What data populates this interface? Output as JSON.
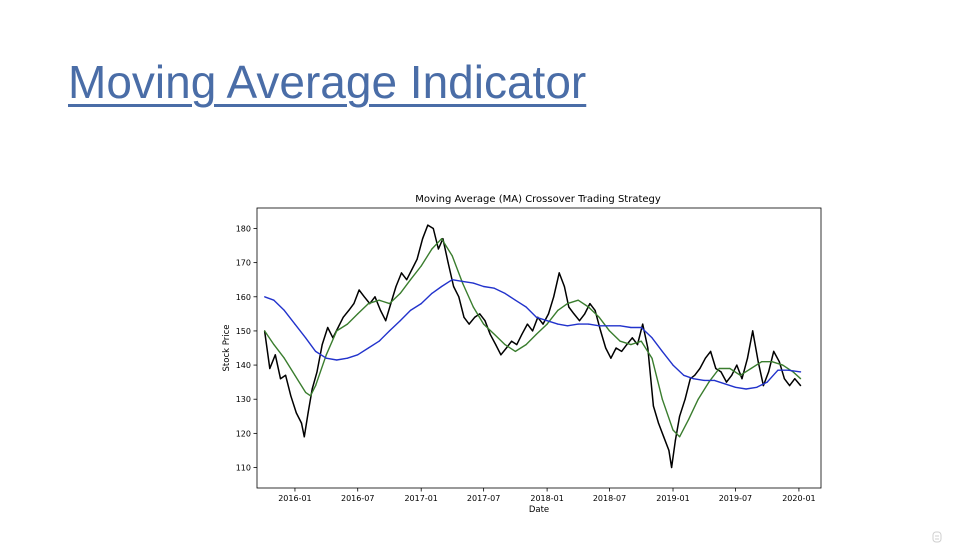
{
  "slide": {
    "title": "Moving Average Indicator"
  },
  "colors": {
    "title": "#4a6da7",
    "price": "#000000",
    "short_ma": "#3a7d2e",
    "long_ma": "#2233cc"
  },
  "chart_data": {
    "type": "line",
    "title": "Moving Average (MA) Crossover Trading Strategy",
    "xlabel": "Date",
    "ylabel": "Stock Price",
    "x_ticks": [
      "2016-01",
      "2016-07",
      "2017-01",
      "2017-07",
      "2018-01",
      "2018-07",
      "2019-01",
      "2019-07",
      "2020-01"
    ],
    "y_ticks": [
      110,
      120,
      130,
      140,
      150,
      160,
      170,
      180
    ],
    "xlim": [
      "2015-09-13",
      "2020-03-05"
    ],
    "ylim": [
      104,
      186
    ],
    "grid": false,
    "legend": "none",
    "series": [
      {
        "key": "price",
        "color": "#000000",
        "points": [
          [
            "2015-10-05",
            150
          ],
          [
            "2015-10-20",
            139
          ],
          [
            "2015-11-05",
            143
          ],
          [
            "2015-11-20",
            136
          ],
          [
            "2015-12-05",
            137
          ],
          [
            "2015-12-20",
            131
          ],
          [
            "2016-01-05",
            126
          ],
          [
            "2016-01-20",
            123
          ],
          [
            "2016-01-28",
            119
          ],
          [
            "2016-02-08",
            126
          ],
          [
            "2016-02-20",
            133
          ],
          [
            "2016-03-05",
            138
          ],
          [
            "2016-03-20",
            146
          ],
          [
            "2016-04-05",
            151
          ],
          [
            "2016-04-20",
            148
          ],
          [
            "2016-05-05",
            151
          ],
          [
            "2016-05-20",
            154
          ],
          [
            "2016-06-05",
            156
          ],
          [
            "2016-06-20",
            158
          ],
          [
            "2016-07-05",
            162
          ],
          [
            "2016-07-20",
            160
          ],
          [
            "2016-08-05",
            158
          ],
          [
            "2016-08-20",
            160
          ],
          [
            "2016-09-05",
            156
          ],
          [
            "2016-09-20",
            153
          ],
          [
            "2016-10-05",
            158
          ],
          [
            "2016-10-20",
            163
          ],
          [
            "2016-11-05",
            167
          ],
          [
            "2016-11-20",
            165
          ],
          [
            "2016-12-05",
            168
          ],
          [
            "2016-12-20",
            171
          ],
          [
            "2017-01-05",
            177
          ],
          [
            "2017-01-20",
            181
          ],
          [
            "2017-02-05",
            180
          ],
          [
            "2017-02-20",
            174
          ],
          [
            "2017-03-05",
            177
          ],
          [
            "2017-03-20",
            170
          ],
          [
            "2017-04-05",
            163
          ],
          [
            "2017-04-20",
            160
          ],
          [
            "2017-05-05",
            154
          ],
          [
            "2017-05-20",
            152
          ],
          [
            "2017-06-05",
            154
          ],
          [
            "2017-06-20",
            155
          ],
          [
            "2017-07-05",
            153
          ],
          [
            "2017-07-20",
            149
          ],
          [
            "2017-08-05",
            146
          ],
          [
            "2017-08-20",
            143
          ],
          [
            "2017-09-05",
            145
          ],
          [
            "2017-09-20",
            147
          ],
          [
            "2017-10-05",
            146
          ],
          [
            "2017-10-20",
            149
          ],
          [
            "2017-11-05",
            152
          ],
          [
            "2017-11-20",
            150
          ],
          [
            "2017-12-05",
            154
          ],
          [
            "2017-12-20",
            152
          ],
          [
            "2018-01-05",
            155
          ],
          [
            "2018-01-20",
            160
          ],
          [
            "2018-02-05",
            167
          ],
          [
            "2018-02-20",
            163
          ],
          [
            "2018-03-05",
            157
          ],
          [
            "2018-03-20",
            155
          ],
          [
            "2018-04-05",
            153
          ],
          [
            "2018-04-20",
            155
          ],
          [
            "2018-05-05",
            158
          ],
          [
            "2018-05-20",
            156
          ],
          [
            "2018-06-05",
            150
          ],
          [
            "2018-06-20",
            145
          ],
          [
            "2018-07-05",
            142
          ],
          [
            "2018-07-20",
            145
          ],
          [
            "2018-08-05",
            144
          ],
          [
            "2018-08-20",
            146
          ],
          [
            "2018-09-05",
            148
          ],
          [
            "2018-09-20",
            146
          ],
          [
            "2018-10-05",
            152
          ],
          [
            "2018-10-20",
            145
          ],
          [
            "2018-11-05",
            128
          ],
          [
            "2018-11-20",
            123
          ],
          [
            "2018-12-05",
            119
          ],
          [
            "2018-12-20",
            115
          ],
          [
            "2018-12-28",
            110
          ],
          [
            "2019-01-08",
            118
          ],
          [
            "2019-01-20",
            125
          ],
          [
            "2019-02-05",
            130
          ],
          [
            "2019-02-20",
            136
          ],
          [
            "2019-03-05",
            137
          ],
          [
            "2019-03-20",
            139
          ],
          [
            "2019-04-05",
            142
          ],
          [
            "2019-04-20",
            144
          ],
          [
            "2019-05-05",
            139
          ],
          [
            "2019-05-20",
            138
          ],
          [
            "2019-06-05",
            135
          ],
          [
            "2019-06-20",
            137
          ],
          [
            "2019-07-05",
            140
          ],
          [
            "2019-07-20",
            136
          ],
          [
            "2019-08-05",
            142
          ],
          [
            "2019-08-20",
            150
          ],
          [
            "2019-09-05",
            141
          ],
          [
            "2019-09-20",
            134
          ],
          [
            "2019-10-05",
            138
          ],
          [
            "2019-10-20",
            144
          ],
          [
            "2019-11-05",
            141
          ],
          [
            "2019-11-20",
            136
          ],
          [
            "2019-12-05",
            134
          ],
          [
            "2019-12-20",
            136
          ],
          [
            "2020-01-06",
            134
          ]
        ]
      },
      {
        "key": "short_ma",
        "color": "#3a7d2e",
        "points": [
          [
            "2015-10-05",
            150
          ],
          [
            "2015-11-01",
            146
          ],
          [
            "2015-12-01",
            142
          ],
          [
            "2016-01-01",
            137
          ],
          [
            "2016-02-01",
            132
          ],
          [
            "2016-02-15",
            131
          ],
          [
            "2016-03-01",
            134
          ],
          [
            "2016-04-01",
            143
          ],
          [
            "2016-05-01",
            150
          ],
          [
            "2016-06-01",
            152
          ],
          [
            "2016-07-01",
            155
          ],
          [
            "2016-08-01",
            158
          ],
          [
            "2016-09-01",
            159
          ],
          [
            "2016-10-01",
            158
          ],
          [
            "2016-11-01",
            161
          ],
          [
            "2016-12-01",
            165
          ],
          [
            "2017-01-01",
            169
          ],
          [
            "2017-02-01",
            174
          ],
          [
            "2017-03-01",
            177
          ],
          [
            "2017-04-01",
            172
          ],
          [
            "2017-05-01",
            164
          ],
          [
            "2017-06-01",
            157
          ],
          [
            "2017-07-01",
            152
          ],
          [
            "2017-08-01",
            149
          ],
          [
            "2017-09-01",
            146
          ],
          [
            "2017-10-01",
            144
          ],
          [
            "2017-11-01",
            146
          ],
          [
            "2017-12-01",
            149
          ],
          [
            "2018-01-01",
            152
          ],
          [
            "2018-02-01",
            156
          ],
          [
            "2018-03-01",
            158
          ],
          [
            "2018-04-01",
            159
          ],
          [
            "2018-05-01",
            157
          ],
          [
            "2018-06-01",
            154
          ],
          [
            "2018-07-01",
            150
          ],
          [
            "2018-08-01",
            147
          ],
          [
            "2018-09-01",
            146
          ],
          [
            "2018-10-01",
            147
          ],
          [
            "2018-11-01",
            142
          ],
          [
            "2018-12-01",
            130
          ],
          [
            "2019-01-01",
            121
          ],
          [
            "2019-01-20",
            119
          ],
          [
            "2019-02-15",
            124
          ],
          [
            "2019-03-15",
            130
          ],
          [
            "2019-04-15",
            135
          ],
          [
            "2019-05-15",
            139
          ],
          [
            "2019-06-15",
            139
          ],
          [
            "2019-07-15",
            137
          ],
          [
            "2019-08-15",
            139
          ],
          [
            "2019-09-15",
            141
          ],
          [
            "2019-10-15",
            141
          ],
          [
            "2019-11-15",
            140
          ],
          [
            "2019-12-15",
            138
          ],
          [
            "2020-01-06",
            136
          ]
        ]
      },
      {
        "key": "long_ma",
        "color": "#2233cc",
        "points": [
          [
            "2015-10-05",
            160
          ],
          [
            "2015-11-01",
            159
          ],
          [
            "2015-12-01",
            156
          ],
          [
            "2016-01-01",
            152
          ],
          [
            "2016-02-01",
            148
          ],
          [
            "2016-03-01",
            144
          ],
          [
            "2016-04-01",
            142
          ],
          [
            "2016-05-01",
            141.5
          ],
          [
            "2016-06-01",
            142
          ],
          [
            "2016-07-01",
            143
          ],
          [
            "2016-08-01",
            145
          ],
          [
            "2016-09-01",
            147
          ],
          [
            "2016-10-01",
            150
          ],
          [
            "2016-11-01",
            153
          ],
          [
            "2016-12-01",
            156
          ],
          [
            "2017-01-01",
            158
          ],
          [
            "2017-02-01",
            161
          ],
          [
            "2017-03-01",
            163
          ],
          [
            "2017-04-01",
            165
          ],
          [
            "2017-05-01",
            164.5
          ],
          [
            "2017-06-01",
            164
          ],
          [
            "2017-07-01",
            163
          ],
          [
            "2017-08-01",
            162.5
          ],
          [
            "2017-09-01",
            161
          ],
          [
            "2017-10-01",
            159
          ],
          [
            "2017-11-01",
            157
          ],
          [
            "2017-12-01",
            154
          ],
          [
            "2018-01-01",
            153
          ],
          [
            "2018-02-01",
            152
          ],
          [
            "2018-03-01",
            151.5
          ],
          [
            "2018-04-01",
            152
          ],
          [
            "2018-05-01",
            152
          ],
          [
            "2018-06-01",
            151.5
          ],
          [
            "2018-07-01",
            151.5
          ],
          [
            "2018-08-01",
            151.5
          ],
          [
            "2018-09-01",
            151
          ],
          [
            "2018-10-01",
            151
          ],
          [
            "2018-11-01",
            148
          ],
          [
            "2018-12-01",
            144
          ],
          [
            "2019-01-01",
            140
          ],
          [
            "2019-02-01",
            137
          ],
          [
            "2019-03-01",
            136
          ],
          [
            "2019-04-01",
            135.5
          ],
          [
            "2019-05-01",
            135.5
          ],
          [
            "2019-06-01",
            134.5
          ],
          [
            "2019-07-01",
            133.5
          ],
          [
            "2019-08-01",
            133
          ],
          [
            "2019-09-01",
            133.5
          ],
          [
            "2019-10-01",
            135
          ],
          [
            "2019-11-01",
            138.5
          ],
          [
            "2019-12-01",
            138.5
          ],
          [
            "2020-01-06",
            138
          ]
        ]
      }
    ]
  }
}
